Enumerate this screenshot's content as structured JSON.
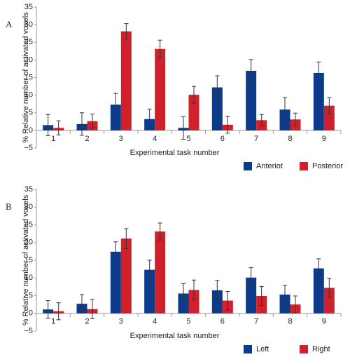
{
  "chart_data": [
    {
      "type": "bar",
      "panel_label": "A",
      "ylabel": "% Relative number of activated voxels",
      "xlabel": "Experimental task number",
      "categories": [
        "1",
        "2",
        "3",
        "4",
        "5",
        "6",
        "7",
        "8",
        "9"
      ],
      "series": [
        {
          "name": "Anteriot",
          "color": "#0d3b8c",
          "values": [
            1.5,
            1.8,
            7.3,
            3.2,
            0.7,
            12.2,
            16.9,
            5.9,
            16.3
          ],
          "errors": [
            3,
            3.2,
            3.2,
            2.8,
            3.2,
            3.3,
            3.2,
            3.4,
            3.1
          ]
        },
        {
          "name": "Posterior",
          "color": "#d0202c",
          "values": [
            0.7,
            2.6,
            28.1,
            23.1,
            10.1,
            1.6,
            2.9,
            3.1,
            7
          ],
          "errors": [
            2,
            2,
            2.2,
            2.5,
            2.4,
            2.4,
            1.6,
            1.8,
            2.3
          ]
        }
      ],
      "ylim": [
        -5,
        35
      ],
      "yticks": [
        {
          "value": -5,
          "label": "−5"
        },
        0,
        5,
        10,
        15,
        20,
        25,
        30,
        35
      ],
      "legend": "bottom-right"
    },
    {
      "type": "bar",
      "panel_label": "B",
      "ylabel": "% Relative number of activated voxels",
      "xlabel": "Experimental task number",
      "categories": [
        "1",
        "2",
        "3",
        "4",
        "5",
        "6",
        "7",
        "8",
        "9"
      ],
      "series": [
        {
          "name": "Left",
          "color": "#0d3b8c",
          "values": [
            1.1,
            2.7,
            17.4,
            12.3,
            5.6,
            6.5,
            10.1,
            5.3,
            12.7
          ],
          "errors": [
            2.5,
            2.6,
            2.8,
            2.7,
            2.8,
            2.8,
            2.8,
            2.6,
            2.7
          ]
        },
        {
          "name": "Right",
          "color": "#d0202c",
          "values": [
            0.6,
            1.2,
            21.1,
            23.1,
            6.6,
            3.6,
            4.9,
            2.5,
            7.2
          ],
          "errors": [
            2.4,
            2.7,
            2.8,
            2.4,
            2.8,
            2.6,
            2.7,
            2.4,
            2.7
          ]
        }
      ],
      "ylim": [
        -5,
        35
      ],
      "yticks": [
        {
          "value": -5,
          "label": "−5"
        },
        0,
        5,
        10,
        15,
        20,
        25,
        30,
        35
      ],
      "legend": "bottom-right"
    }
  ]
}
